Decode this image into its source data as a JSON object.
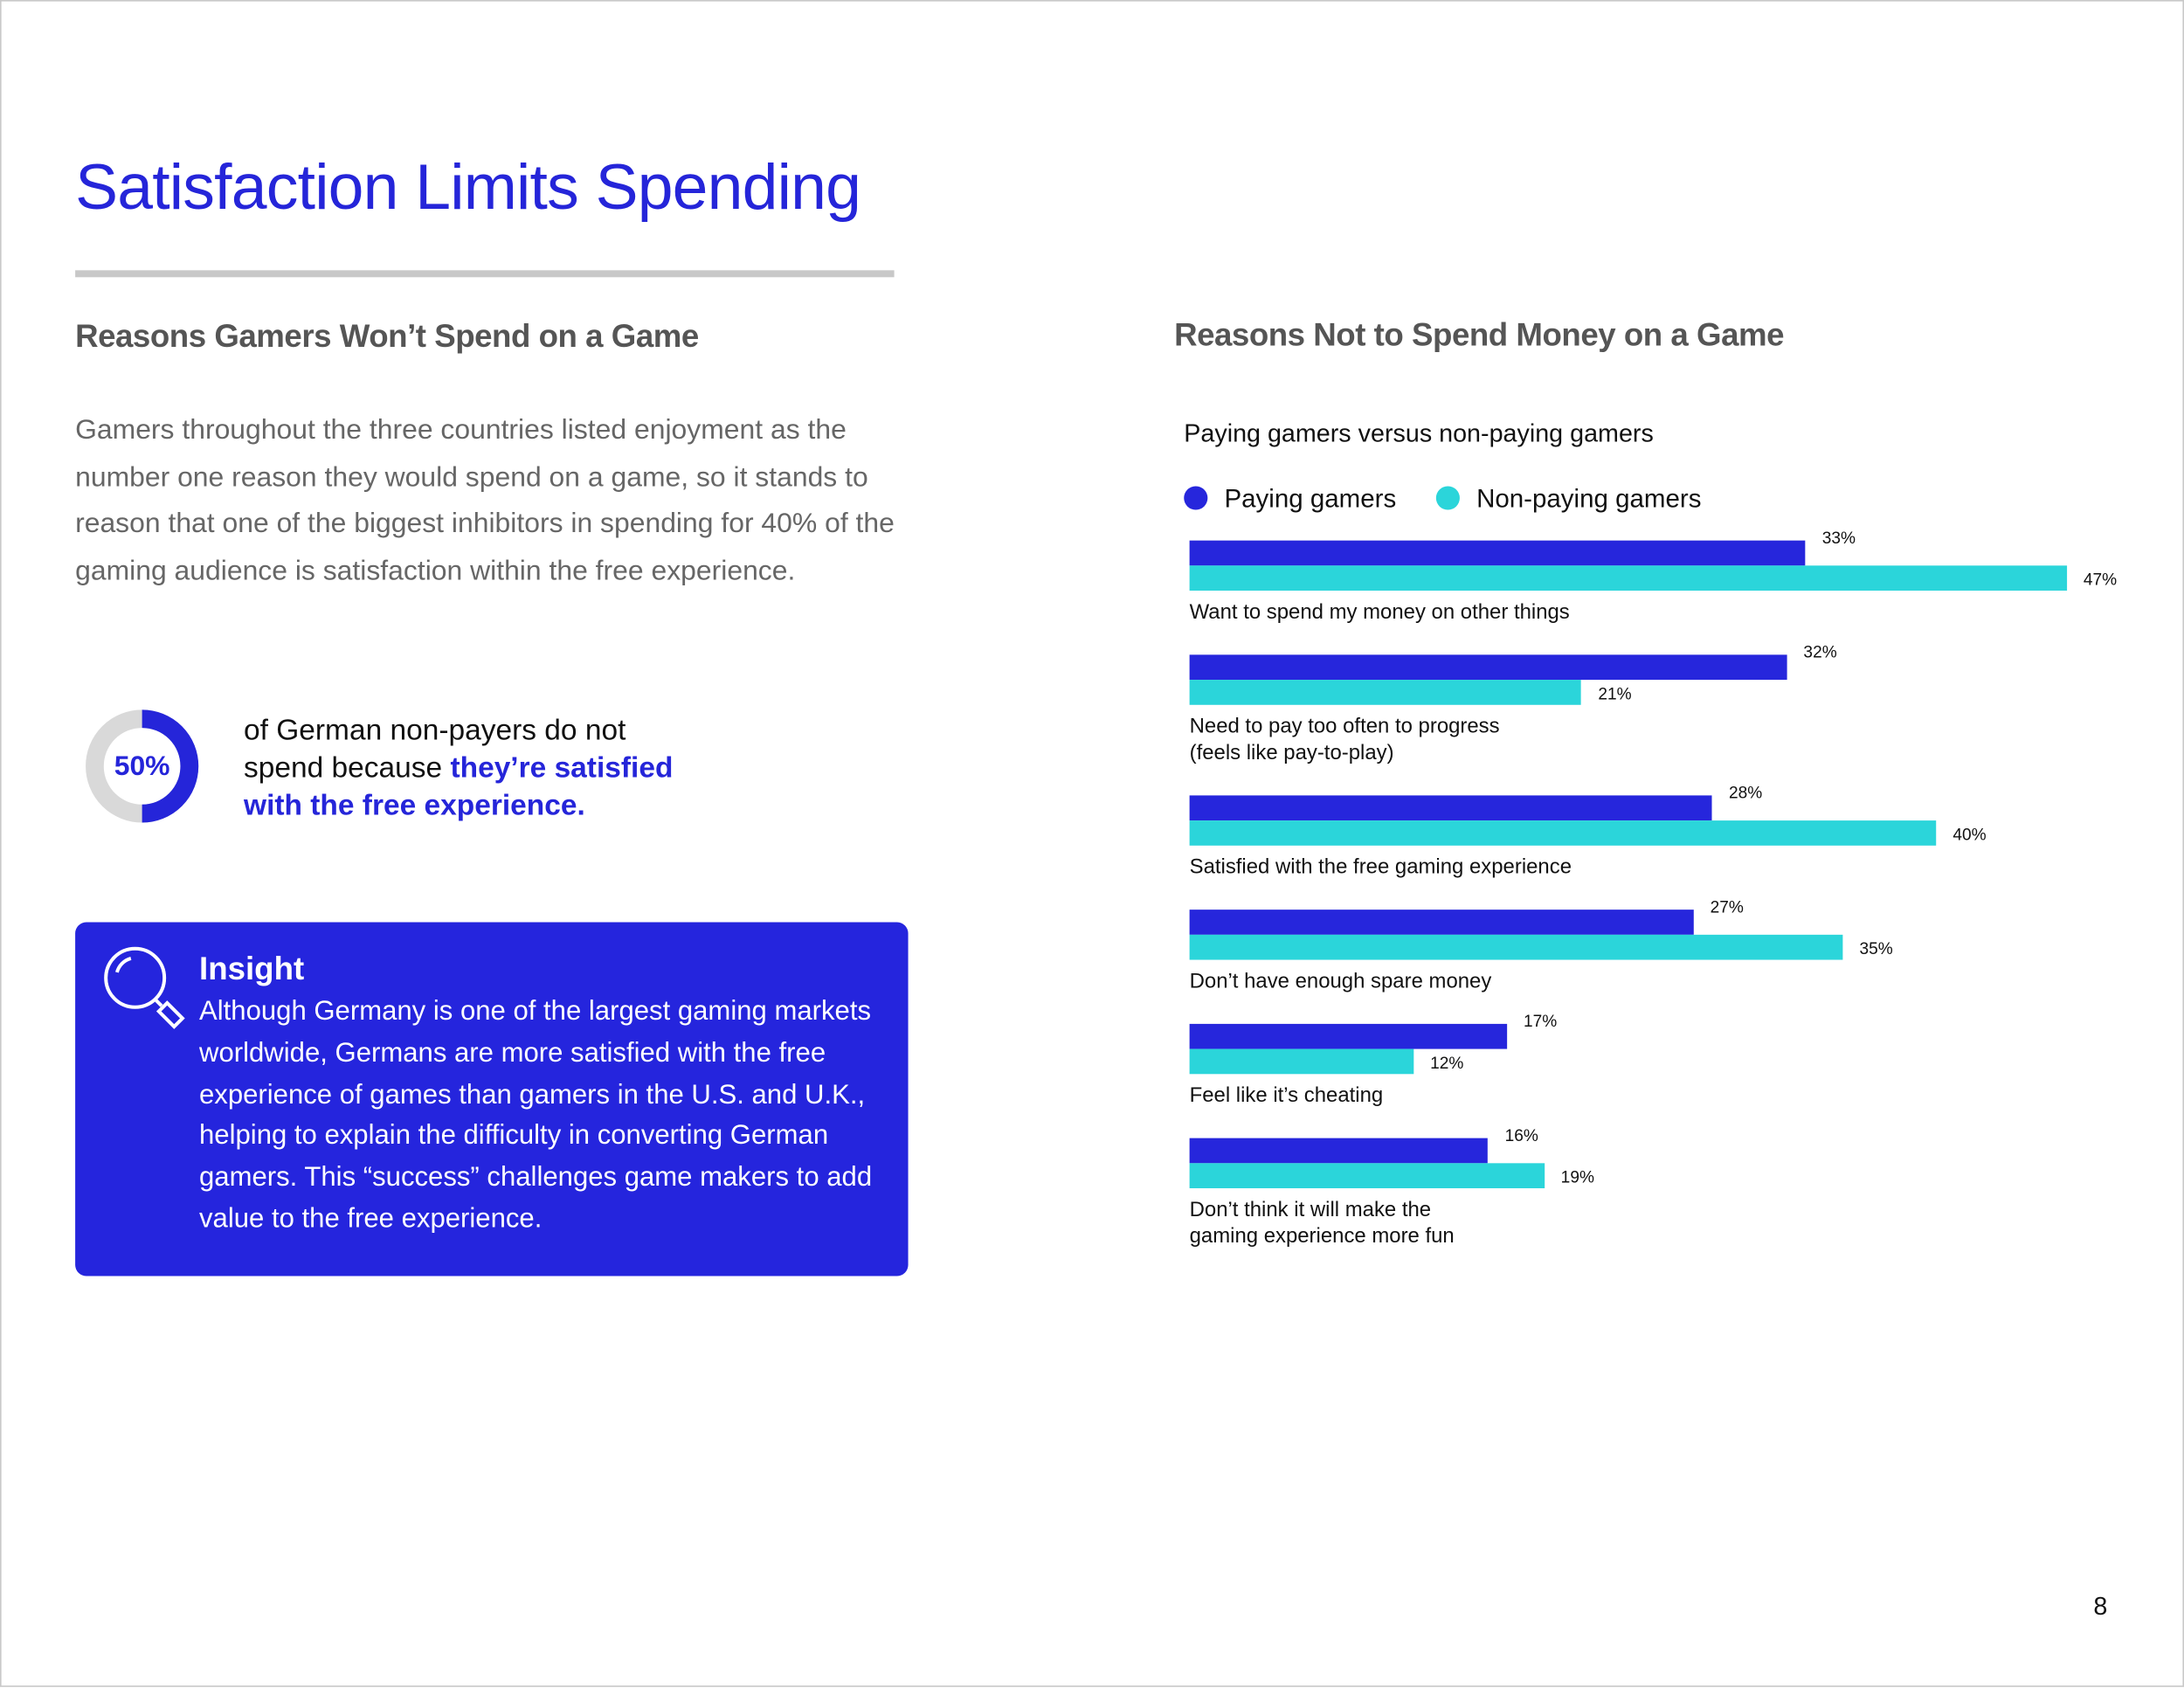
{
  "header": {
    "title": "Satisfaction Limits Spending"
  },
  "left": {
    "heading": "Reasons Gamers Won’t Spend on a Game",
    "paragraph": "Gamers throughout the three countries listed enjoyment as the number one reason they would spend on a game, so it stands to reason that one of the biggest inhibitors in spending for 40% of the gaming audience is satisfaction within the free experience.",
    "stat": {
      "value": 50,
      "label": "50%",
      "text": "of German non-payers do not spend because",
      "highlight": "they’re satisfied with the free experience."
    },
    "insight": {
      "title": "Insight",
      "body": "Although Germany is one of the largest gaming markets worldwide, Germans are more satisfied with the free experience of games than gamers in the U.S. and U.K., helping to explain the difficulty in converting German gamers. This “success” challenges game makers to add value to the free experience."
    }
  },
  "chart_data": {
    "type": "bar",
    "orientation": "horizontal",
    "title": "Reasons Not to Spend Money on a Game",
    "subtitle": "Paying gamers versus non-paying gamers",
    "categories": [
      "Want to spend my money on other things",
      "Need to pay too often to progress\n(feels like pay-to-play)",
      "Satisfied with the free gaming experience",
      "Don’t have enough spare money",
      "Feel like it’s cheating",
      "Don’t think it will make the\ngaming experience more fun"
    ],
    "series": [
      {
        "name": "Paying gamers",
        "color": "#2626dc",
        "values": [
          33,
          32,
          28,
          27,
          17,
          16
        ],
        "value_labels": [
          "33%",
          "32%",
          "28%",
          "27%",
          "17%",
          "16%"
        ]
      },
      {
        "name": "Non-paying gamers",
        "color": "#2bd5da",
        "values": [
          47,
          21,
          40,
          35,
          12,
          19
        ],
        "value_labels": [
          "47%",
          "21%",
          "40%",
          "35%",
          "12%",
          "19%"
        ]
      }
    ]
  },
  "page_number": 8
}
